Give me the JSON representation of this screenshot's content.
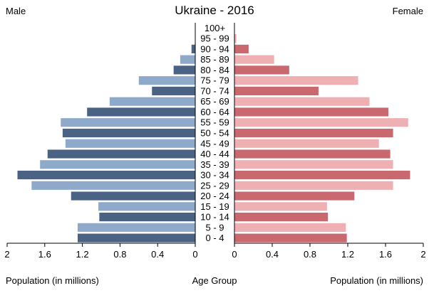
{
  "chart_data": {
    "type": "bar",
    "orientation": "horizontal",
    "layout": "population-pyramid",
    "title": "Ukraine - 2016",
    "left_header": "Male",
    "right_header": "Female",
    "left_xlabel": "Population (in millions)",
    "center_label": "Age Group",
    "right_xlabel": "Population (in millions)",
    "xlim": [
      0,
      2
    ],
    "ticks": [
      0,
      0.4,
      0.8,
      1.2,
      1.6,
      2
    ],
    "tick_labels": [
      "0",
      "0.4",
      "0.8",
      "1.2",
      "1.6",
      "2"
    ],
    "grid": false,
    "categories": [
      "100+",
      "95 - 99",
      "90 - 94",
      "85 - 89",
      "80 - 84",
      "75 - 79",
      "70 - 74",
      "65 - 69",
      "60 - 64",
      "55 - 59",
      "50 - 54",
      "45 - 49",
      "40 - 44",
      "35 - 39",
      "30 - 34",
      "25 - 29",
      "20 - 24",
      "15 - 19",
      "10 - 14",
      "5 - 9",
      "0 - 4"
    ],
    "series": [
      {
        "side": "left",
        "values": [
          0.0,
          0.0,
          0.04,
          0.16,
          0.23,
          0.6,
          0.46,
          0.91,
          1.15,
          1.43,
          1.41,
          1.38,
          1.57,
          1.65,
          1.89,
          1.74,
          1.32,
          1.03,
          1.02,
          1.25,
          1.25
        ]
      },
      {
        "side": "right",
        "values": [
          0.0,
          0.02,
          0.15,
          0.42,
          0.58,
          1.31,
          0.89,
          1.43,
          1.63,
          1.84,
          1.68,
          1.53,
          1.65,
          1.68,
          1.86,
          1.68,
          1.27,
          0.98,
          0.99,
          1.18,
          1.19
        ]
      }
    ],
    "colors": {
      "male_dark": "#4a6385",
      "male_light": "#8fa9ca",
      "female_dark": "#c9686e",
      "female_light": "#efb0b3",
      "axis": "#000000"
    }
  }
}
